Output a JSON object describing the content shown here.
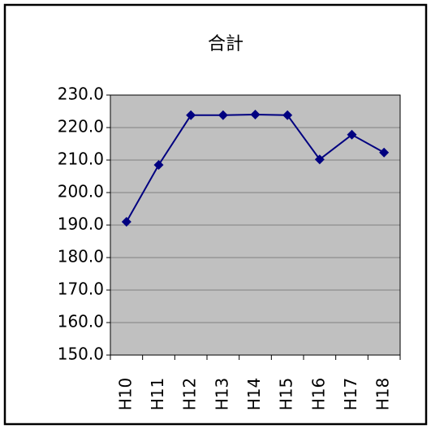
{
  "chart_data": {
    "type": "line",
    "title": "合計",
    "categories": [
      "H10",
      "H11",
      "H12",
      "H13",
      "H14",
      "H15",
      "H16",
      "H17",
      "H18"
    ],
    "series": [
      {
        "name": "合計",
        "color": "#000080",
        "values": [
          191.0,
          208.5,
          223.8,
          223.8,
          224.0,
          223.8,
          210.2,
          217.8,
          212.3
        ]
      }
    ],
    "ylim": [
      150,
      230
    ],
    "yticks": [
      {
        "value": 150,
        "label": "150.0"
      },
      {
        "value": 160,
        "label": "160.0"
      },
      {
        "value": 170,
        "label": "170.0"
      },
      {
        "value": 180,
        "label": "180.0"
      },
      {
        "value": 190,
        "label": "190.0"
      },
      {
        "value": 200,
        "label": "200.0"
      },
      {
        "value": 210,
        "label": "210.0"
      },
      {
        "value": 220,
        "label": "220.0"
      },
      {
        "value": 230,
        "label": "230.0"
      }
    ],
    "grid": true,
    "plot_background": "#c0c0c0"
  }
}
